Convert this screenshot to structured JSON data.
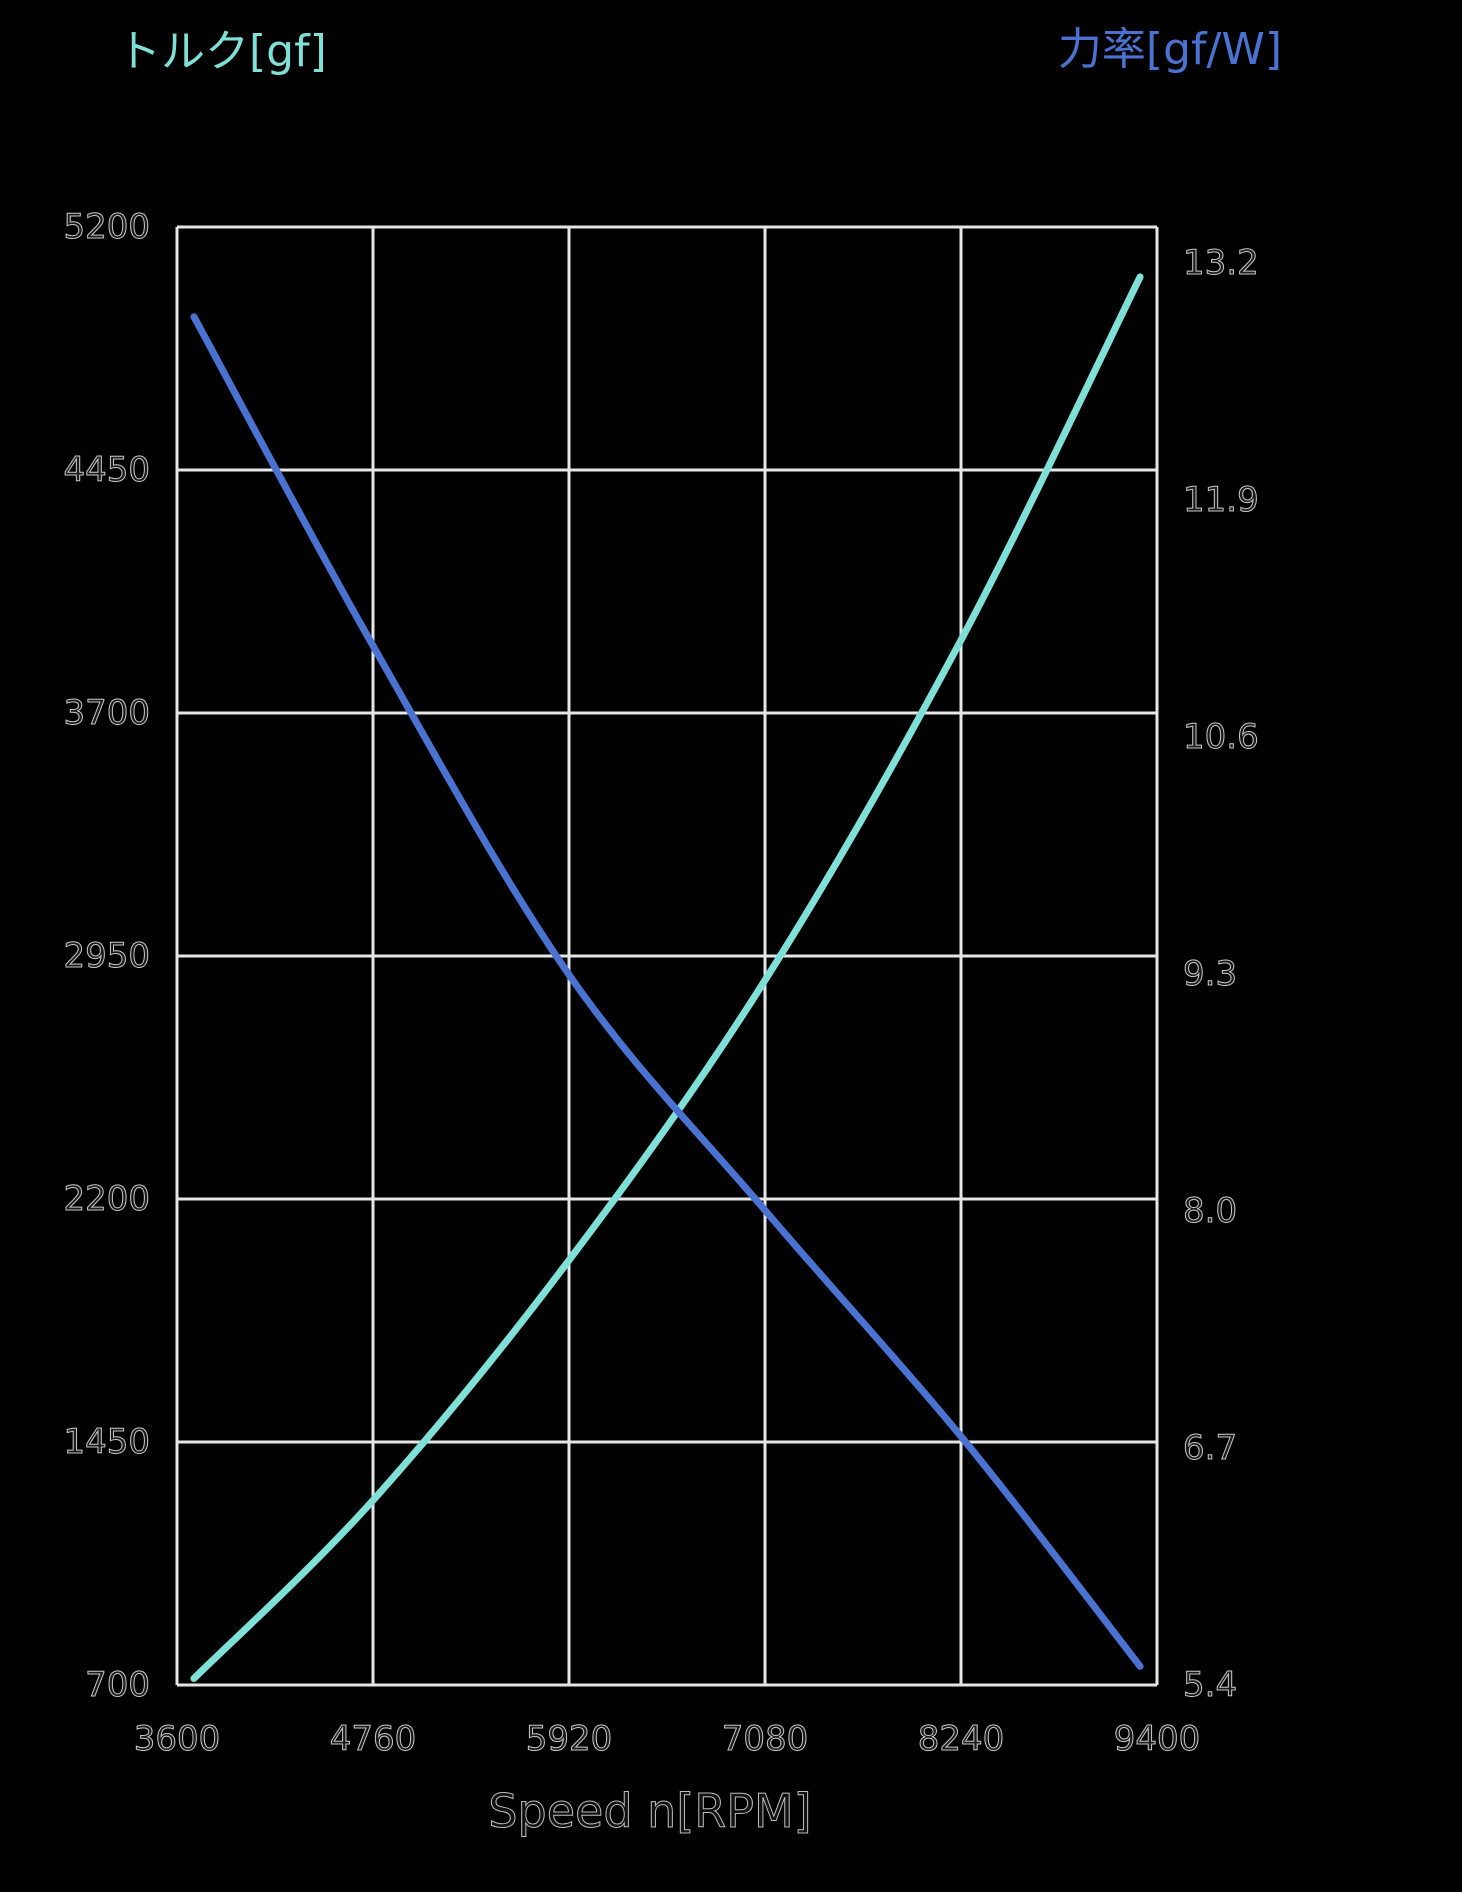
{
  "chart_data": {
    "type": "line",
    "title": "",
    "xlabel": "Speed n[RPM]",
    "ylabel_left": "トルク[gf]",
    "ylabel_right": "力率[gf/W]",
    "x_ticks": [
      3600,
      4760,
      5920,
      7080,
      8240,
      9400
    ],
    "y_left_ticks": [
      5200,
      4450,
      3700,
      2950,
      2200,
      1450,
      700
    ],
    "y_right_ticks": [
      "13.2",
      "11.9",
      "10.6",
      "9.3",
      "8.0",
      "6.7",
      "5.4"
    ],
    "xlim": [
      3600,
      9400
    ],
    "ylim_left": [
      700,
      5200
    ],
    "ylim_right": [
      5.4,
      13.2
    ],
    "grid": true,
    "legend": "none (axis titles color-coded)",
    "x": [
      3700,
      4760,
      5920,
      7080,
      8240,
      9300
    ],
    "series": [
      {
        "name": "トルク[gf]",
        "axis": "left",
        "color": "#7fe0d8",
        "values": [
          720,
          1270,
          2011,
          2875,
          3925,
          5046
        ]
      },
      {
        "name": "力率[gf/W]",
        "axis": "right",
        "color": "#4a72d0",
        "values": [
          12.72,
          10.96,
          9.2,
          7.94,
          6.73,
          5.5
        ]
      }
    ]
  },
  "labels": {
    "left_title": "トルク[gf]",
    "right_title": "力率[gf/W]",
    "x_title": "Speed n[RPM]"
  },
  "colors": {
    "background": "#000000",
    "grid": "#e6e6e6",
    "torque": "#7fe0d8",
    "efficiency": "#4a72d0"
  }
}
